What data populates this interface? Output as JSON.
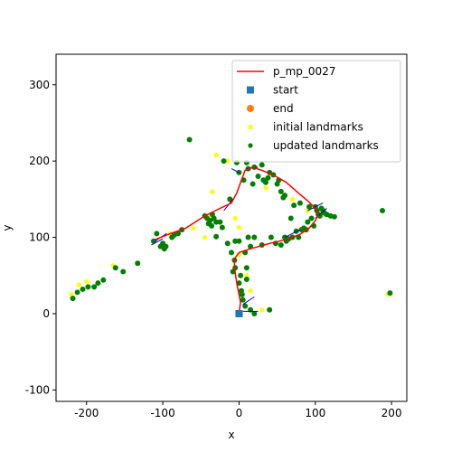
{
  "chart_data": {
    "type": "scatter",
    "xlabel": "x",
    "ylabel": "y",
    "xlim": [
      -240,
      220
    ],
    "ylim": [
      -115,
      340
    ],
    "xticks": [
      -200,
      -100,
      0,
      100,
      200
    ],
    "yticks": [
      -100,
      0,
      100,
      200,
      300
    ],
    "grid": false,
    "legend_placement": "top-right",
    "legend": [
      {
        "label": "p_mp_0027",
        "kind": "line",
        "color": "#ff0000"
      },
      {
        "label": "start",
        "kind": "square",
        "color": "#1f77b4"
      },
      {
        "label": "end",
        "kind": "circle",
        "color": "#ff7f0e"
      },
      {
        "label": "initial landmarks",
        "kind": "dot",
        "color": "#ffff00"
      },
      {
        "label": "updated landmarks",
        "kind": "dot",
        "color": "#008000"
      }
    ],
    "trajectory": {
      "name": "p_mp_0027",
      "color": "#ff0000",
      "points": [
        [
          0,
          0
        ],
        [
          2,
          15
        ],
        [
          -3,
          40
        ],
        [
          -6,
          60
        ],
        [
          -6,
          72
        ],
        [
          0,
          80
        ],
        [
          15,
          85
        ],
        [
          40,
          92
        ],
        [
          65,
          98
        ],
        [
          80,
          104
        ],
        [
          92,
          112
        ],
        [
          100,
          122
        ],
        [
          104,
          130
        ],
        [
          100,
          138
        ],
        [
          90,
          148
        ],
        [
          78,
          158
        ],
        [
          62,
          172
        ],
        [
          48,
          180
        ],
        [
          32,
          187
        ],
        [
          18,
          192
        ],
        [
          8,
          188
        ],
        [
          2,
          172
        ],
        [
          -3,
          158
        ],
        [
          -10,
          145
        ],
        [
          -25,
          138
        ],
        [
          -45,
          128
        ],
        [
          -70,
          112
        ],
        [
          -95,
          103
        ],
        [
          -110,
          97
        ]
      ]
    },
    "start": {
      "name": "start",
      "x": 0,
      "y": 0,
      "color": "#1f77b4"
    },
    "end": {
      "name": "end",
      "x": 1,
      "y": 0,
      "color": "#ff7f0e"
    },
    "heading_arrows": {
      "color": "#0000cc",
      "points": [
        [
          5,
          3,
          25,
          3
        ],
        [
          5,
          12,
          20,
          22
        ],
        [
          0,
          185,
          -10,
          190
        ],
        [
          10,
          190,
          25,
          192
        ],
        [
          90,
          135,
          110,
          145
        ],
        [
          100,
          125,
          115,
          138
        ],
        [
          -110,
          95,
          -95,
          105
        ],
        [
          -100,
          98,
          -115,
          90
        ],
        [
          -8,
          150,
          -20,
          135
        ],
        [
          60,
          100,
          80,
          110
        ]
      ]
    },
    "initial_landmarks": {
      "name": "initial landmarks",
      "color": "#ffff00",
      "points": [
        [
          -220,
          25
        ],
        [
          -210,
          38
        ],
        [
          -200,
          42
        ],
        [
          -165,
          63
        ],
        [
          -90,
          105
        ],
        [
          -40,
          127
        ],
        [
          -35,
          160
        ],
        [
          -30,
          208
        ],
        [
          -15,
          200
        ],
        [
          0,
          113
        ],
        [
          0,
          77
        ],
        [
          10,
          50
        ],
        [
          15,
          30
        ],
        [
          30,
          5
        ],
        [
          35,
          165
        ],
        [
          90,
          135
        ],
        [
          110,
          130
        ],
        [
          195,
          25
        ],
        [
          -45,
          100
        ],
        [
          -5,
          125
        ],
        [
          -60,
          112
        ],
        [
          70,
          150
        ]
      ]
    },
    "updated_landmarks": {
      "name": "updated landmarks",
      "color": "#008000",
      "points": [
        [
          -218,
          20
        ],
        [
          -212,
          28
        ],
        [
          -205,
          32
        ],
        [
          -198,
          35
        ],
        [
          -190,
          35
        ],
        [
          -185,
          40
        ],
        [
          -178,
          44
        ],
        [
          -162,
          60
        ],
        [
          -152,
          55
        ],
        [
          -133,
          66
        ],
        [
          -112,
          95
        ],
        [
          -108,
          105
        ],
        [
          -103,
          88
        ],
        [
          -100,
          92
        ],
        [
          -98,
          85
        ],
        [
          -96,
          88
        ],
        [
          -88,
          100
        ],
        [
          -85,
          103
        ],
        [
          -80,
          105
        ],
        [
          -75,
          110
        ],
        [
          -65,
          228
        ],
        [
          -45,
          128
        ],
        [
          -42,
          125
        ],
        [
          -40,
          118
        ],
        [
          -38,
          122
        ],
        [
          -36,
          115
        ],
        [
          -35,
          130
        ],
        [
          -33,
          125
        ],
        [
          -30,
          120
        ],
        [
          -30,
          101
        ],
        [
          -25,
          120
        ],
        [
          -22,
          113
        ],
        [
          -20,
          200
        ],
        [
          -15,
          92
        ],
        [
          -12,
          150
        ],
        [
          -10,
          80
        ],
        [
          -8,
          55
        ],
        [
          -6,
          70
        ],
        [
          -5,
          60
        ],
        [
          -5,
          95
        ],
        [
          -3,
          198
        ],
        [
          0,
          185
        ],
        [
          0,
          95
        ],
        [
          0,
          40
        ],
        [
          2,
          50
        ],
        [
          3,
          30
        ],
        [
          4,
          25
        ],
        [
          5,
          18
        ],
        [
          6,
          175
        ],
        [
          8,
          80
        ],
        [
          8,
          10
        ],
        [
          10,
          198
        ],
        [
          10,
          60
        ],
        [
          10,
          45
        ],
        [
          12,
          190
        ],
        [
          12,
          100
        ],
        [
          15,
          88
        ],
        [
          15,
          5
        ],
        [
          18,
          170
        ],
        [
          20,
          192
        ],
        [
          20,
          100
        ],
        [
          20,
          0
        ],
        [
          25,
          180
        ],
        [
          30,
          195
        ],
        [
          30,
          90
        ],
        [
          32,
          175
        ],
        [
          35,
          172
        ],
        [
          38,
          178
        ],
        [
          40,
          185
        ],
        [
          40,
          5
        ],
        [
          42,
          100
        ],
        [
          45,
          182
        ],
        [
          48,
          92
        ],
        [
          50,
          170
        ],
        [
          52,
          175
        ],
        [
          55,
          160
        ],
        [
          55,
          90
        ],
        [
          58,
          152
        ],
        [
          60,
          155
        ],
        [
          60,
          100
        ],
        [
          62,
          95
        ],
        [
          65,
          98
        ],
        [
          68,
          125
        ],
        [
          70,
          100
        ],
        [
          72,
          142
        ],
        [
          75,
          108
        ],
        [
          78,
          100
        ],
        [
          80,
          145
        ],
        [
          82,
          110
        ],
        [
          85,
          112
        ],
        [
          88,
          110
        ],
        [
          90,
          120
        ],
        [
          92,
          140
        ],
        [
          95,
          125
        ],
        [
          98,
          115
        ],
        [
          100,
          140
        ],
        [
          102,
          135
        ],
        [
          104,
          130
        ],
        [
          106,
          128
        ],
        [
          108,
          138
        ],
        [
          110,
          135
        ],
        [
          112,
          132
        ],
        [
          115,
          130
        ],
        [
          120,
          128
        ],
        [
          125,
          127
        ],
        [
          188,
          135
        ],
        [
          198,
          27
        ]
      ]
    }
  }
}
